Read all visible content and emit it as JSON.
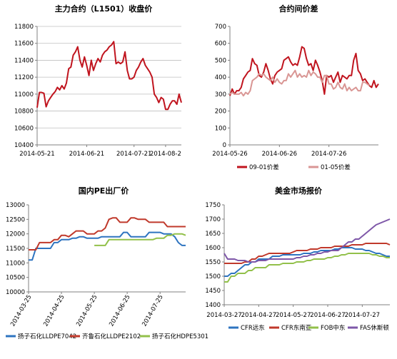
{
  "chart_data": [
    {
      "type": "line",
      "title": "主力合约（L1501）收盘价",
      "ylim": [
        10400,
        11800
      ],
      "yticks": [
        "11800",
        "11600",
        "11400",
        "11200",
        "11000",
        "10800",
        "10600",
        "10400"
      ],
      "xticks": [
        {
          "label": "2014-05-21",
          "i": 0
        },
        {
          "label": "2014-06-21",
          "i": 22
        },
        {
          "label": "2014-07-21",
          "i": 43
        },
        {
          "label": "2014-08-2",
          "i": 57
        }
      ],
      "legend": "none",
      "grid": true,
      "series": [
        {
          "name": "",
          "color": "#c0141e",
          "values": [
            10840,
            11020,
            11020,
            11010,
            10850,
            10920,
            10960,
            11000,
            11030,
            11080,
            11050,
            11100,
            11060,
            11130,
            11300,
            11320,
            11460,
            11500,
            11560,
            11400,
            11320,
            11440,
            11340,
            11220,
            11400,
            11280,
            11360,
            11420,
            11380,
            11460,
            11500,
            11520,
            11560,
            11580,
            11620,
            11360,
            11380,
            11360,
            11380,
            11500,
            11280,
            11180,
            11180,
            11200,
            11280,
            11320,
            11380,
            11420,
            11340,
            11300,
            11260,
            11200,
            11000,
            10960,
            10900,
            10960,
            10940,
            10820,
            10820,
            10880,
            10920,
            10920,
            10880,
            11000,
            10900
          ]
        }
      ]
    },
    {
      "type": "line",
      "title": "合约间价差",
      "ylim": [
        0,
        700
      ],
      "yticks": [
        "700",
        "600",
        "500",
        "400",
        "300",
        "200",
        "100",
        "0"
      ],
      "xticks": [
        {
          "label": "2014-05-26",
          "i": 0
        },
        {
          "label": "2014-06-26",
          "i": 22
        },
        {
          "label": "2014-07-26",
          "i": 44
        }
      ],
      "legend": "bottom",
      "grid": false,
      "series": [
        {
          "name": "09-01价差",
          "color": "#c0141e",
          "values": [
            290,
            330,
            300,
            320,
            320,
            340,
            390,
            410,
            430,
            440,
            510,
            480,
            470,
            410,
            400,
            430,
            480,
            440,
            390,
            360,
            410,
            430,
            440,
            450,
            500,
            510,
            520,
            490,
            470,
            480,
            470,
            520,
            580,
            570,
            510,
            470,
            480,
            440,
            500,
            470,
            430,
            380,
            300,
            410,
            400,
            410,
            370,
            400,
            430,
            370,
            410,
            400,
            390,
            410,
            410,
            500,
            540,
            440,
            420,
            380,
            390,
            370,
            350,
            340,
            380,
            340,
            360
          ]
        },
        {
          "name": "01-05价差",
          "color": "#d99694",
          "values": [
            300,
            310,
            300,
            300,
            300,
            310,
            290,
            310,
            300,
            320,
            380,
            390,
            400,
            420,
            410,
            420,
            400,
            390,
            380,
            400,
            370,
            390,
            370,
            360,
            380,
            380,
            420,
            400,
            420,
            440,
            400,
            420,
            400,
            410,
            400,
            440,
            410,
            430,
            420,
            400,
            400,
            370,
            410,
            410,
            360,
            360,
            330,
            340,
            370,
            340,
            330,
            360,
            320,
            340,
            320,
            330,
            340,
            320,
            320,
            370,
            370,
            360,
            350
          ]
        }
      ]
    },
    {
      "type": "line",
      "title": "国内PE出厂价",
      "ylim": [
        10000,
        13000
      ],
      "yticks": [
        "13000",
        "12500",
        "12000",
        "11500",
        "11000",
        "10500",
        "10000"
      ],
      "xticks": [
        {
          "label": "2014-03-25",
          "i": 0
        },
        {
          "label": "2014-04-25",
          "i": 9
        },
        {
          "label": "2014-05-25",
          "i": 18
        },
        {
          "label": "2014-06-25",
          "i": 27
        },
        {
          "label": "2014-07-25",
          "i": 36
        }
      ],
      "legend": "bottom",
      "grid": false,
      "series": [
        {
          "name": "扬子石化LLDPE7042",
          "color": "#2e74c0",
          "values": [
            11100,
            11100,
            11500,
            11500,
            11500,
            11500,
            11500,
            11700,
            11700,
            11800,
            11800,
            11800,
            11850,
            11850,
            11900,
            11900,
            11850,
            11850,
            11850,
            11850,
            11900,
            11900,
            11900,
            11900,
            11900,
            11900,
            12050,
            12050,
            11900,
            11900,
            11900,
            11900,
            11900,
            12050,
            12050,
            12050,
            12050,
            12000,
            12000,
            12000,
            11900,
            11700,
            11600,
            11600
          ]
        },
        {
          "name": "齐鲁石化LLDPE2102",
          "color": "#c0392b",
          "values": [
            11450,
            11450,
            11450,
            11700,
            11700,
            11700,
            11700,
            11800,
            11800,
            11950,
            11950,
            11900,
            12000,
            12100,
            12100,
            12100,
            12000,
            12000,
            12000,
            12100,
            12100,
            12200,
            12500,
            12550,
            12550,
            12400,
            12400,
            12400,
            12550,
            12550,
            12500,
            12500,
            12500,
            12400,
            12400,
            12400,
            12400,
            12400,
            12250,
            12250,
            12250,
            12250,
            12250,
            12250
          ]
        },
        {
          "name": "扬子石化HDPE5301",
          "color": "#92c04a",
          "values": [
            null,
            null,
            null,
            null,
            null,
            null,
            null,
            null,
            null,
            null,
            null,
            null,
            null,
            null,
            null,
            null,
            null,
            null,
            11600,
            11600,
            11600,
            11600,
            11800,
            11800,
            11800,
            11800,
            11800,
            11800,
            11800,
            11800,
            11800,
            11800,
            11800,
            11800,
            11800,
            11850,
            11850,
            11850,
            11950,
            11950,
            12000,
            12000,
            12000,
            11950
          ]
        }
      ]
    },
    {
      "type": "line",
      "title": "美金市场报价",
      "ylim": [
        1400,
        1750
      ],
      "yticks": [
        "1750",
        "1700",
        "1650",
        "1600",
        "1550",
        "1500",
        "1450",
        "1400"
      ],
      "xticks": [
        {
          "label": "2014-03-27",
          "i": 0
        },
        {
          "label": "2014-04-27",
          "i": 10
        },
        {
          "label": "2014-05-27",
          "i": 20
        },
        {
          "label": "2014-06-27",
          "i": 30
        },
        {
          "label": "2014-07-27",
          "i": 40
        }
      ],
      "legend": "bottom",
      "grid": false,
      "series": [
        {
          "name": "CFR远东",
          "color": "#2e74c0",
          "values": [
            1500,
            1500,
            1510,
            1510,
            1520,
            1530,
            1540,
            1540,
            1550,
            1550,
            1560,
            1560,
            1560,
            1560,
            1570,
            1570,
            1570,
            1575,
            1575,
            1575,
            1575,
            1575,
            1575,
            1580,
            1580,
            1580,
            1585,
            1585,
            1590,
            1590,
            1590,
            1590,
            1595,
            1595,
            1600,
            1600,
            1600,
            1600,
            1595,
            1595,
            1595,
            1590,
            1590,
            1585,
            1580,
            1580,
            1575,
            1570,
            1570
          ]
        },
        {
          "name": "CFR东南亚",
          "color": "#c0392b",
          "values": [
            1545,
            1545,
            1545,
            1545,
            1545,
            1545,
            1550,
            1550,
            1560,
            1560,
            1570,
            1570,
            1575,
            1580,
            1580,
            1580,
            1580,
            1580,
            1580,
            1580,
            1585,
            1590,
            1590,
            1590,
            1590,
            1595,
            1595,
            1595,
            1600,
            1600,
            1600,
            1600,
            1605,
            1605,
            1605,
            1605,
            1605,
            1610,
            1610,
            1610,
            1610,
            1615,
            1615,
            1615,
            1615,
            1615,
            1615,
            1615,
            1610
          ]
        },
        {
          "name": "FOB中东",
          "color": "#92c04a",
          "values": [
            1480,
            1480,
            1500,
            1500,
            1510,
            1510,
            1510,
            1520,
            1520,
            1530,
            1530,
            1530,
            1530,
            1540,
            1540,
            1540,
            1540,
            1545,
            1545,
            1545,
            1545,
            1550,
            1550,
            1550,
            1555,
            1555,
            1560,
            1560,
            1560,
            1560,
            1565,
            1565,
            1570,
            1570,
            1575,
            1575,
            1580,
            1580,
            1580,
            1580,
            1580,
            1580,
            1580,
            1575,
            1575,
            1570,
            1570,
            1565,
            1565
          ]
        },
        {
          "name": "FAS休斯顿",
          "color": "#7e57a8",
          "values": [
            1580,
            1560,
            1560,
            1560,
            1555,
            1555,
            1555,
            1550,
            1550,
            1550,
            1555,
            1555,
            1555,
            1560,
            1560,
            1560,
            1560,
            1560,
            1560,
            1560,
            1560,
            1565,
            1565,
            1570,
            1570,
            1575,
            1575,
            1580,
            1580,
            1585,
            1585,
            1590,
            1590,
            1590,
            1600,
            1610,
            1620,
            1620,
            1630,
            1630,
            1640,
            1650,
            1660,
            1670,
            1680,
            1685,
            1690,
            1695,
            1700
          ]
        }
      ]
    }
  ]
}
